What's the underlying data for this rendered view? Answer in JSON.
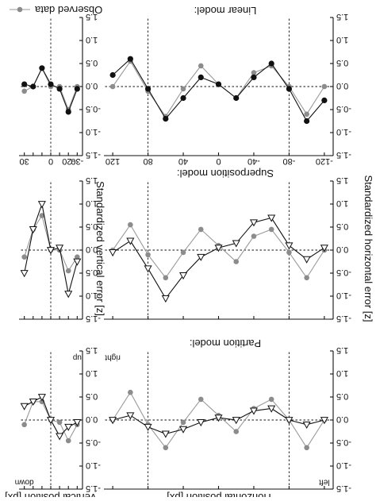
{
  "figure": {
    "xlabel_horizontal": "Horizontal position [px]",
    "xlabel_vertical": "Vertical position [px]",
    "ylabel_horizontal": "Standardized horizontal error [z]",
    "ylabel_vertical": "Standardized vertical error [z]",
    "legend": "Observed data",
    "colors": {
      "observed": "#8c8c8c",
      "model": "#111111"
    }
  },
  "rows": [
    {
      "title": "Linear model:"
    },
    {
      "title": "Superposition model:"
    },
    {
      "title": "Partition model:"
    }
  ],
  "chart_data": [
    {
      "type": "line",
      "model": "Partition model:",
      "panel": "horizontal",
      "x": [
        -120,
        -100,
        -80,
        -60,
        -40,
        -20,
        0,
        20,
        40,
        60,
        80,
        100,
        120
      ],
      "xlim": [
        -130,
        130
      ],
      "ylim": [
        -1.5,
        1.5
      ],
      "xticks": [
        -120,
        -80,
        -40,
        0,
        40,
        80,
        120
      ],
      "xtick_labels": [
        "-120",
        "-80",
        "-40",
        "0",
        "40",
        "80",
        "120"
      ],
      "yticks": [
        -1.5,
        -1.0,
        -0.5,
        0.0,
        0.5,
        1.0,
        1.5
      ],
      "ytick_labels": [
        "-1.5",
        "-1.0",
        "-0.5",
        "0.0",
        "0.5",
        "1.0",
        "1.5"
      ],
      "guides": [
        -80,
        80
      ],
      "annotations": [],
      "series": [
        {
          "role": "observed",
          "values": [
            0.0,
            -0.6,
            0.0,
            0.45,
            0.3,
            -0.25,
            0.05,
            0.45,
            -0.05,
            -0.65,
            -0.1,
            0.55,
            0.0
          ]
        },
        {
          "role": "model",
          "marker": "filled-circle",
          "values": [
            -0.3,
            -0.75,
            -0.05,
            0.5,
            0.2,
            -0.25,
            0.05,
            0.2,
            -0.25,
            -0.7,
            -0.05,
            0.6,
            0.25
          ]
        }
      ]
    },
    {
      "type": "line",
      "model": "Superposition model:",
      "panel": "horizontal",
      "x": [
        -120,
        -100,
        -80,
        -60,
        -40,
        -20,
        0,
        20,
        40,
        60,
        80,
        100,
        120
      ],
      "xlim": [
        -130,
        130
      ],
      "ylim": [
        -1.5,
        1.5
      ],
      "xticks": [
        -120,
        -80,
        -40,
        0,
        40,
        80,
        120
      ],
      "yticks": [
        -1.5,
        -1.0,
        -0.5,
        0.0,
        0.5,
        1.0,
        1.5
      ],
      "ytick_labels": [
        "-1.5",
        "-1.0",
        "-0.5",
        "0.0",
        "0.5",
        "1.0",
        "1.5"
      ],
      "guides": [
        -80,
        80
      ],
      "annotations": [],
      "series": [
        {
          "role": "observed",
          "values": [
            0.0,
            -0.6,
            -0.05,
            0.45,
            0.3,
            -0.25,
            0.1,
            0.45,
            -0.05,
            -0.6,
            -0.1,
            0.55,
            0.0
          ]
        },
        {
          "role": "model",
          "marker": "open-triangle",
          "values": [
            0.05,
            -0.2,
            0.1,
            0.7,
            0.6,
            0.15,
            0.05,
            -0.15,
            -0.55,
            -1.05,
            -0.4,
            0.2,
            -0.05
          ]
        }
      ]
    },
    {
      "type": "line",
      "model": "Linear model:",
      "panel": "horizontal",
      "x": [
        -120,
        -100,
        -80,
        -60,
        -40,
        -20,
        0,
        20,
        40,
        60,
        80,
        100,
        120
      ],
      "xlim": [
        -130,
        130
      ],
      "ylim": [
        -1.5,
        1.5
      ],
      "xticks": [
        -120,
        -80,
        -40,
        0,
        40,
        80,
        120
      ],
      "yticks": [
        -1.5,
        -1.0,
        -0.5,
        0.0,
        0.5,
        1.0,
        1.5
      ],
      "ytick_labels": [
        "-1.5",
        "-1.0",
        "-0.5",
        "0.0",
        "0.5",
        "1.0",
        "1.5"
      ],
      "guides": [
        -80,
        80
      ],
      "annotations": [
        {
          "text": "right",
          "x": 120,
          "y": 1.35
        },
        {
          "text": "left",
          "x": -120,
          "y": -1.35
        }
      ],
      "series": [
        {
          "role": "observed",
          "values": [
            0.0,
            -0.6,
            0.0,
            0.45,
            0.25,
            -0.25,
            0.1,
            0.45,
            -0.05,
            -0.6,
            -0.1,
            0.6,
            0.0
          ]
        },
        {
          "role": "model",
          "marker": "open-triangle",
          "values": [
            0.0,
            -0.1,
            0.0,
            0.25,
            0.2,
            0.0,
            0.05,
            -0.05,
            -0.2,
            -0.3,
            -0.15,
            0.1,
            0.0
          ]
        }
      ]
    },
    {
      "type": "line",
      "model": "Partition model:",
      "panel": "vertical",
      "x": [
        -30,
        -20,
        -10,
        0,
        10,
        20,
        30
      ],
      "xlim": [
        -36,
        36
      ],
      "ylim": [
        -1.5,
        1.5
      ],
      "xticks": [
        -30,
        -20,
        -10,
        0,
        10,
        20,
        30
      ],
      "xtick_labels": [
        "-30",
        "-20",
        "",
        "0",
        "",
        "",
        "30"
      ],
      "yticks": [
        -1.5,
        -1.0,
        -0.5,
        0.0,
        0.5,
        1.0,
        1.5
      ],
      "ytick_labels": [
        "-1.5",
        "-1.0",
        "-0.5",
        "0.0",
        "0.5",
        "1.0",
        "1.5"
      ],
      "guides": [
        0
      ],
      "annotations": [],
      "series": [
        {
          "role": "observed",
          "values": [
            0.0,
            -0.5,
            0.0,
            0.0,
            0.4,
            0.0,
            -0.1
          ]
        },
        {
          "role": "model",
          "marker": "filled-circle",
          "values": [
            -0.05,
            -0.55,
            -0.05,
            0.05,
            0.4,
            0.0,
            0.05
          ]
        }
      ]
    },
    {
      "type": "line",
      "model": "Superposition model:",
      "panel": "vertical",
      "x": [
        -30,
        -20,
        -10,
        0,
        10,
        20,
        30
      ],
      "xlim": [
        -36,
        36
      ],
      "ylim": [
        -1.5,
        1.5
      ],
      "xticks": [
        -30,
        -20,
        -10,
        0,
        10,
        20,
        30
      ],
      "yticks": [
        -1.5,
        -1.0,
        -0.5,
        0.0,
        0.5,
        1.0,
        1.5
      ],
      "ytick_labels": [
        "-1.5",
        "-1.0",
        "-0.5",
        "0.0",
        "0.5",
        "1.0",
        "1.5"
      ],
      "guides": [
        0
      ],
      "annotations": [],
      "series": [
        {
          "role": "observed",
          "values": [
            -0.15,
            -0.45,
            0.0,
            0.0,
            0.75,
            0.45,
            -0.15
          ]
        },
        {
          "role": "model",
          "marker": "open-triangle",
          "values": [
            -0.25,
            -0.95,
            0.05,
            0.0,
            1.0,
            0.45,
            -0.5
          ]
        }
      ]
    },
    {
      "type": "line",
      "model": "Linear model:",
      "panel": "vertical",
      "x": [
        -30,
        -20,
        -10,
        0,
        10,
        20,
        30
      ],
      "xlim": [
        -36,
        36
      ],
      "ylim": [
        -1.5,
        1.5
      ],
      "xticks": [
        -30,
        -20,
        -10,
        0,
        10,
        20,
        30
      ],
      "yticks": [
        -1.5,
        -1.0,
        -0.5,
        0.0,
        0.5,
        1.0,
        1.5
      ],
      "ytick_labels": [
        "-1.5",
        "-1.0",
        "-0.5",
        "0.0",
        "0.5",
        "1.0",
        "1.5"
      ],
      "guides": [
        0
      ],
      "annotations": [
        {
          "text": "up",
          "x": -30,
          "y": 1.35
        },
        {
          "text": "down",
          "x": 30,
          "y": -1.35
        }
      ],
      "series": [
        {
          "role": "observed",
          "values": [
            -0.1,
            -0.45,
            -0.05,
            0.0,
            0.4,
            0.4,
            -0.1
          ]
        },
        {
          "role": "model",
          "marker": "open-triangle",
          "values": [
            -0.05,
            -0.15,
            -0.35,
            0.0,
            0.5,
            0.4,
            0.3
          ]
        }
      ]
    }
  ]
}
